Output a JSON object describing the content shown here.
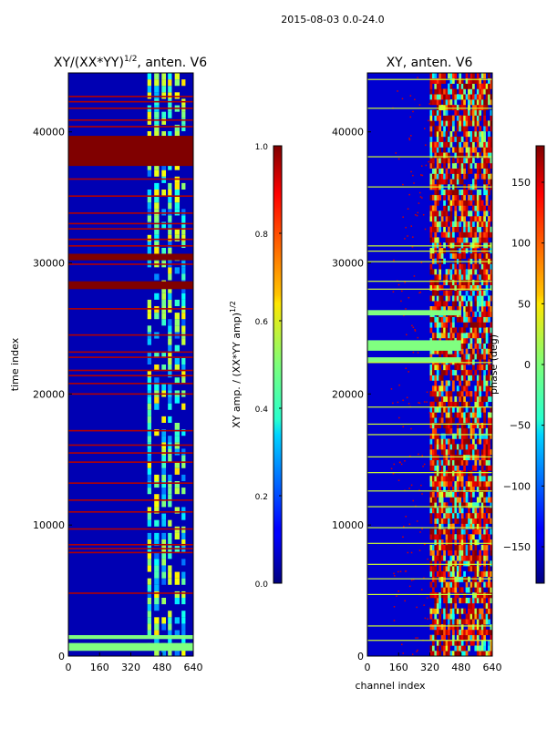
{
  "suptitle": "2015-08-03 0.0-24.0",
  "chart_data": [
    {
      "type": "heatmap",
      "title": "XY/(XX*YY)",
      "title_superscript": "1/2",
      "title_suffix": ", anten. V6",
      "xlabel": "",
      "ylabel": "time index",
      "xlim": [
        0,
        640
      ],
      "ylim": [
        0,
        44500
      ],
      "xticks": [
        0,
        160,
        320,
        480,
        640
      ],
      "yticks": [
        0,
        10000,
        20000,
        30000,
        40000
      ],
      "colorbar": {
        "label": "XY amp. / (XX*YY amp)",
        "label_superscript": "1/2",
        "range": [
          0.0,
          1.0
        ],
        "ticks": [
          "0.0",
          "0.2",
          "0.4",
          "0.6",
          "0.8",
          "1.0"
        ],
        "tick_values": [
          0.0,
          0.2,
          0.4,
          0.6,
          0.8,
          1.0
        ]
      },
      "background_value": 0.05,
      "bright_channel_bands": [
        [
          405,
          425
        ],
        [
          440,
          465
        ],
        [
          478,
          500
        ],
        [
          510,
          530
        ],
        [
          545,
          570
        ],
        [
          580,
          600
        ]
      ],
      "bright_band_value": 0.55,
      "saturated_time_blocks": [
        [
          37400,
          39700
        ],
        [
          28000,
          28600
        ],
        [
          30200,
          30700
        ]
      ],
      "saturated_time_lines": [
        42700,
        42300,
        41800,
        40900,
        40400,
        36400,
        35100,
        33800,
        33000,
        32600,
        31800,
        31300,
        29900,
        26500,
        24500,
        23200,
        22800,
        21800,
        21400,
        20800,
        20000,
        17200,
        16100,
        15500,
        14800,
        13200,
        11900,
        11000,
        9700,
        8500,
        8200,
        7900,
        4800
      ],
      "bottom_bright_rows": [
        [
          400,
          1000
        ],
        [
          1300,
          1600
        ]
      ]
    },
    {
      "type": "heatmap",
      "title": "XY, anten. V6",
      "xlabel": "channel index",
      "ylabel": "",
      "xlim": [
        0,
        640
      ],
      "ylim": [
        0,
        44500
      ],
      "xticks": [
        0,
        160,
        320,
        480,
        640
      ],
      "yticks": [
        0,
        10000,
        20000,
        30000,
        40000
      ],
      "colorbar": {
        "label": "phase (deg)",
        "range": [
          -180,
          180
        ],
        "ticks": [
          "150",
          "100",
          "50",
          "0",
          "−50",
          "−100",
          "−150"
        ],
        "tick_values": [
          150,
          100,
          50,
          0,
          -50,
          -100,
          -150
        ]
      },
      "background_value": -150,
      "noisy_channel_range": [
        320,
        640
      ],
      "green_time_bands": [
        [
          23300,
          24100
        ],
        [
          26000,
          26400
        ],
        [
          22400,
          22800
        ]
      ],
      "thin_lines": [
        44000,
        41800,
        38100,
        35800,
        31300,
        30900,
        30100,
        28600,
        28000,
        22400,
        19000,
        17700,
        16900,
        15200,
        14000,
        12600,
        11400,
        9800,
        8600,
        7000,
        5900,
        4700,
        2300,
        1200
      ]
    }
  ],
  "colormap": "jet"
}
